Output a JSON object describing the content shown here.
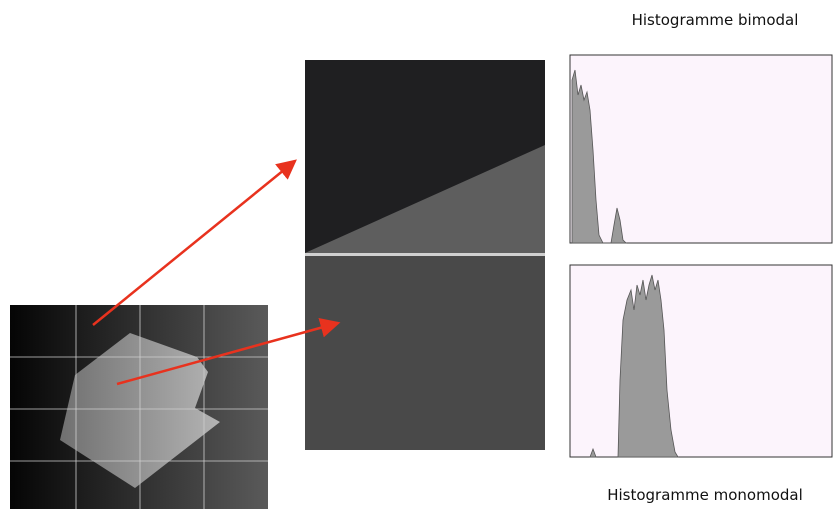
{
  "labels": {
    "top": "Histogramme bimodal",
    "bottom": "Histogramme monomodal"
  }
}
